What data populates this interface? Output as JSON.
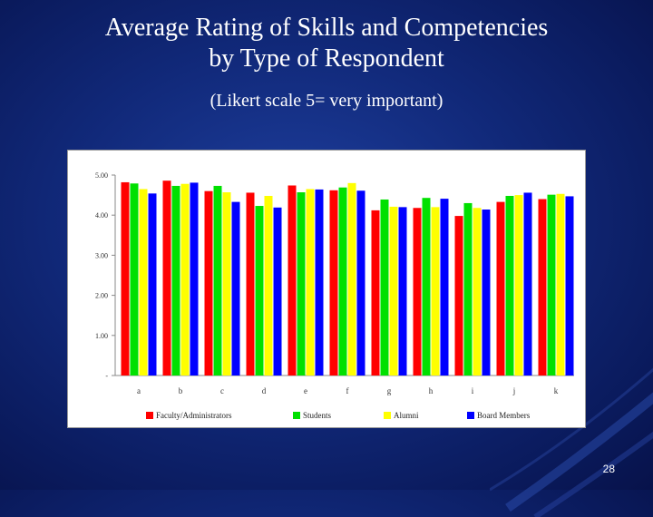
{
  "slide": {
    "title_line1": "Average Rating of Skills and Competencies",
    "title_line2": "by Type of Respondent",
    "subtitle": "(Likert scale 5= very important)",
    "slide_number": "28"
  },
  "colors": {
    "background": "#11297a",
    "series": [
      "#ff0000",
      "#00e000",
      "#ffff00",
      "#0000ff"
    ]
  },
  "chart_data": {
    "type": "bar",
    "title": "",
    "xlabel": "",
    "ylabel": "",
    "ylim": [
      0,
      5
    ],
    "yticks": [
      0,
      1,
      2,
      3,
      4,
      5
    ],
    "ytick_labels": [
      "-",
      "1.00",
      "2.00",
      "3.00",
      "4.00",
      "5.00"
    ],
    "categories": [
      "a",
      "b",
      "c",
      "d",
      "e",
      "f",
      "g",
      "h",
      "i",
      "j",
      "k"
    ],
    "grid": false,
    "legend_position": "bottom",
    "series": [
      {
        "name": "Faculty/Administrators",
        "color": "#ff0000",
        "values": [
          4.82,
          4.86,
          4.6,
          4.56,
          4.74,
          4.62,
          4.12,
          4.18,
          3.98,
          4.33,
          4.4
        ]
      },
      {
        "name": "Students",
        "color": "#00e000",
        "values": [
          4.79,
          4.73,
          4.73,
          4.23,
          4.57,
          4.69,
          4.39,
          4.43,
          4.3,
          4.48,
          4.51
        ]
      },
      {
        "name": "Alumni",
        "color": "#ffff00",
        "values": [
          4.65,
          4.78,
          4.57,
          4.48,
          4.65,
          4.8,
          4.21,
          4.2,
          4.18,
          4.5,
          4.53
        ]
      },
      {
        "name": "Board Members",
        "color": "#0000ff",
        "values": [
          4.54,
          4.81,
          4.33,
          4.19,
          4.64,
          4.61,
          4.2,
          4.41,
          4.14,
          4.56,
          4.47
        ]
      }
    ]
  }
}
